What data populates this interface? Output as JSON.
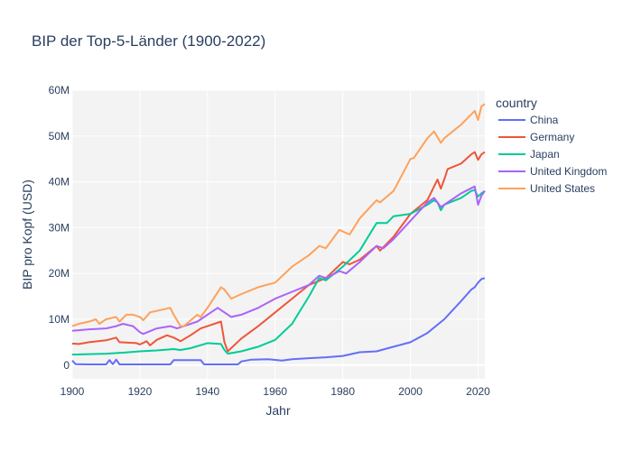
{
  "chart_data": {
    "type": "line",
    "title": "BIP der Top-5-Länder (1900-2022)",
    "xlabel": "Jahr",
    "ylabel": "BIP pro Kopf (USD)",
    "xlim": [
      1900,
      2022
    ],
    "ylim": [
      -3000000,
      60000000
    ],
    "x_ticks": [
      1900,
      1920,
      1940,
      1960,
      1980,
      2000,
      2020
    ],
    "y_ticks": [
      {
        "value": 0,
        "label": "0"
      },
      {
        "value": 10000000,
        "label": "10M"
      },
      {
        "value": 20000000,
        "label": "20M"
      },
      {
        "value": 30000000,
        "label": "30M"
      },
      {
        "value": 40000000,
        "label": "40M"
      },
      {
        "value": 50000000,
        "label": "50M"
      },
      {
        "value": 60000000,
        "label": "60M"
      }
    ],
    "grid": true,
    "legend_title": "country",
    "legend_position": "right",
    "series": [
      {
        "name": "China",
        "color": "#636efa",
        "points": [
          [
            1900,
            1000000
          ],
          [
            1901,
            200000
          ],
          [
            1905,
            150000
          ],
          [
            1910,
            150000
          ],
          [
            1911,
            1100000
          ],
          [
            1912,
            200000
          ],
          [
            1913,
            1200000
          ],
          [
            1914,
            150000
          ],
          [
            1920,
            150000
          ],
          [
            1927,
            150000
          ],
          [
            1929,
            150000
          ],
          [
            1930,
            1100000
          ],
          [
            1935,
            1100000
          ],
          [
            1938,
            1100000
          ],
          [
            1939,
            150000
          ],
          [
            1945,
            150000
          ],
          [
            1949,
            150000
          ],
          [
            1950,
            800000
          ],
          [
            1953,
            1200000
          ],
          [
            1958,
            1300000
          ],
          [
            1962,
            1000000
          ],
          [
            1965,
            1300000
          ],
          [
            1970,
            1500000
          ],
          [
            1975,
            1700000
          ],
          [
            1980,
            2000000
          ],
          [
            1985,
            2800000
          ],
          [
            1990,
            3000000
          ],
          [
            1995,
            4000000
          ],
          [
            2000,
            5000000
          ],
          [
            2005,
            7000000
          ],
          [
            2010,
            10000000
          ],
          [
            2015,
            14000000
          ],
          [
            2018,
            16500000
          ],
          [
            2019,
            17000000
          ],
          [
            2020,
            18000000
          ],
          [
            2021,
            18800000
          ],
          [
            2022,
            19000000
          ]
        ]
      },
      {
        "name": "Germany",
        "color": "#ef553b",
        "points": [
          [
            1900,
            4700000
          ],
          [
            1902,
            4600000
          ],
          [
            1905,
            5000000
          ],
          [
            1910,
            5400000
          ],
          [
            1913,
            6000000
          ],
          [
            1914,
            5000000
          ],
          [
            1919,
            4800000
          ],
          [
            1920,
            4500000
          ],
          [
            1922,
            5200000
          ],
          [
            1923,
            4300000
          ],
          [
            1925,
            5500000
          ],
          [
            1928,
            6500000
          ],
          [
            1930,
            6000000
          ],
          [
            1932,
            5200000
          ],
          [
            1935,
            6500000
          ],
          [
            1938,
            8000000
          ],
          [
            1940,
            8500000
          ],
          [
            1944,
            9500000
          ],
          [
            1945,
            5000000
          ],
          [
            1946,
            3000000
          ],
          [
            1950,
            5800000
          ],
          [
            1955,
            8500000
          ],
          [
            1960,
            11500000
          ],
          [
            1965,
            14500000
          ],
          [
            1970,
            17500000
          ],
          [
            1975,
            19000000
          ],
          [
            1980,
            22500000
          ],
          [
            1982,
            22000000
          ],
          [
            1985,
            23000000
          ],
          [
            1990,
            26000000
          ],
          [
            1991,
            25000000
          ],
          [
            1995,
            28000000
          ],
          [
            2000,
            33000000
          ],
          [
            2005,
            36000000
          ],
          [
            2007,
            39000000
          ],
          [
            2008,
            40500000
          ],
          [
            2009,
            38500000
          ],
          [
            2010,
            40500000
          ],
          [
            2011,
            42800000
          ],
          [
            2015,
            44000000
          ],
          [
            2018,
            46000000
          ],
          [
            2019,
            46500000
          ],
          [
            2020,
            44800000
          ],
          [
            2021,
            46000000
          ],
          [
            2022,
            46500000
          ]
        ]
      },
      {
        "name": "Japan",
        "color": "#00cc96",
        "points": [
          [
            1900,
            2300000
          ],
          [
            1905,
            2400000
          ],
          [
            1910,
            2500000
          ],
          [
            1915,
            2700000
          ],
          [
            1920,
            3000000
          ],
          [
            1925,
            3200000
          ],
          [
            1930,
            3500000
          ],
          [
            1932,
            3300000
          ],
          [
            1935,
            3700000
          ],
          [
            1940,
            4800000
          ],
          [
            1944,
            4600000
          ],
          [
            1945,
            3300000
          ],
          [
            1946,
            2500000
          ],
          [
            1950,
            3000000
          ],
          [
            1955,
            4000000
          ],
          [
            1960,
            5500000
          ],
          [
            1965,
            9000000
          ],
          [
            1970,
            15000000
          ],
          [
            1973,
            19000000
          ],
          [
            1975,
            18500000
          ],
          [
            1980,
            21500000
          ],
          [
            1985,
            25000000
          ],
          [
            1990,
            31000000
          ],
          [
            1993,
            31000000
          ],
          [
            1995,
            32500000
          ],
          [
            2000,
            33000000
          ],
          [
            2005,
            35000000
          ],
          [
            2007,
            36000000
          ],
          [
            2008,
            35500000
          ],
          [
            2009,
            33800000
          ],
          [
            2010,
            35000000
          ],
          [
            2015,
            36500000
          ],
          [
            2018,
            38000000
          ],
          [
            2019,
            38200000
          ],
          [
            2020,
            36800000
          ],
          [
            2021,
            37500000
          ],
          [
            2022,
            38000000
          ]
        ]
      },
      {
        "name": "United Kingdom",
        "color": "#ab63fa",
        "points": [
          [
            1900,
            7500000
          ],
          [
            1905,
            7800000
          ],
          [
            1910,
            8000000
          ],
          [
            1913,
            8500000
          ],
          [
            1915,
            9000000
          ],
          [
            1918,
            8500000
          ],
          [
            1920,
            7200000
          ],
          [
            1921,
            6800000
          ],
          [
            1925,
            8000000
          ],
          [
            1929,
            8500000
          ],
          [
            1931,
            8000000
          ],
          [
            1933,
            8500000
          ],
          [
            1937,
            9500000
          ],
          [
            1940,
            11000000
          ],
          [
            1943,
            12500000
          ],
          [
            1945,
            11500000
          ],
          [
            1947,
            10500000
          ],
          [
            1950,
            11000000
          ],
          [
            1955,
            12500000
          ],
          [
            1960,
            14500000
          ],
          [
            1965,
            16000000
          ],
          [
            1970,
            17500000
          ],
          [
            1973,
            19500000
          ],
          [
            1975,
            19000000
          ],
          [
            1979,
            20500000
          ],
          [
            1981,
            20000000
          ],
          [
            1985,
            22500000
          ],
          [
            1990,
            26000000
          ],
          [
            1992,
            25500000
          ],
          [
            1995,
            27500000
          ],
          [
            2000,
            31500000
          ],
          [
            2005,
            35500000
          ],
          [
            2007,
            36500000
          ],
          [
            2009,
            34500000
          ],
          [
            2010,
            35000000
          ],
          [
            2015,
            37500000
          ],
          [
            2019,
            39000000
          ],
          [
            2020,
            35000000
          ],
          [
            2021,
            37000000
          ],
          [
            2022,
            38000000
          ]
        ]
      },
      {
        "name": "United States",
        "color": "#ffa15a",
        "points": [
          [
            1900,
            8500000
          ],
          [
            1902,
            9000000
          ],
          [
            1905,
            9500000
          ],
          [
            1907,
            10000000
          ],
          [
            1908,
            9000000
          ],
          [
            1910,
            10000000
          ],
          [
            1913,
            10500000
          ],
          [
            1914,
            9500000
          ],
          [
            1916,
            11000000
          ],
          [
            1918,
            11000000
          ],
          [
            1920,
            10500000
          ],
          [
            1921,
            9800000
          ],
          [
            1923,
            11500000
          ],
          [
            1926,
            12000000
          ],
          [
            1929,
            12500000
          ],
          [
            1930,
            11000000
          ],
          [
            1932,
            8500000
          ],
          [
            1933,
            8500000
          ],
          [
            1937,
            11000000
          ],
          [
            1938,
            10500000
          ],
          [
            1940,
            12500000
          ],
          [
            1944,
            17000000
          ],
          [
            1945,
            16500000
          ],
          [
            1947,
            14500000
          ],
          [
            1950,
            15500000
          ],
          [
            1955,
            17000000
          ],
          [
            1960,
            18000000
          ],
          [
            1965,
            21500000
          ],
          [
            1970,
            24000000
          ],
          [
            1973,
            26000000
          ],
          [
            1975,
            25500000
          ],
          [
            1979,
            29500000
          ],
          [
            1982,
            28500000
          ],
          [
            1985,
            32000000
          ],
          [
            1990,
            36000000
          ],
          [
            1991,
            35500000
          ],
          [
            1995,
            38000000
          ],
          [
            2000,
            45000000
          ],
          [
            2001,
            45200000
          ],
          [
            2005,
            49500000
          ],
          [
            2007,
            51000000
          ],
          [
            2009,
            48500000
          ],
          [
            2010,
            49500000
          ],
          [
            2015,
            52500000
          ],
          [
            2019,
            55500000
          ],
          [
            2020,
            53500000
          ],
          [
            2021,
            56500000
          ],
          [
            2022,
            57000000
          ]
        ]
      }
    ]
  }
}
